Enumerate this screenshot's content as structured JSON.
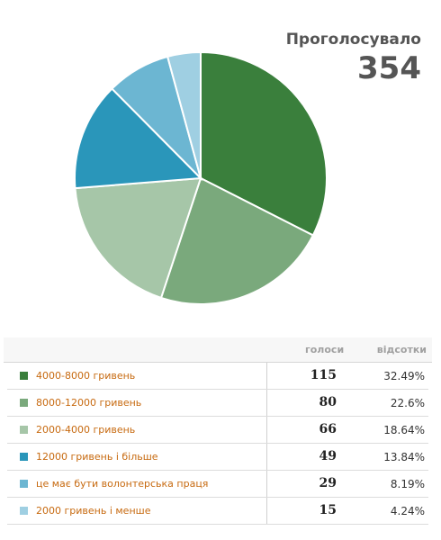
{
  "total": {
    "label": "Проголосувало",
    "value": "354"
  },
  "table": {
    "votes_header": "голоси",
    "percent_header": "відсотки"
  },
  "rows": [
    {
      "label": "4000-8000 гривень",
      "votes": "115",
      "percent": "32.49%",
      "color": "#3a7f3c"
    },
    {
      "label": "8000-12000 гривень",
      "votes": "80",
      "percent": "22.6%",
      "color": "#7aa97c"
    },
    {
      "label": "2000-4000 гривень",
      "votes": "66",
      "percent": "18.64%",
      "color": "#a6c6a8"
    },
    {
      "label": "12000 гривень і більше",
      "votes": "49",
      "percent": "13.84%",
      "color": "#2a96ba"
    },
    {
      "label": "це має бути волонтерська праця",
      "votes": "29",
      "percent": "8.19%",
      "color": "#6cb6d2"
    },
    {
      "label": "2000 гривень і менше",
      "votes": "15",
      "percent": "4.24%",
      "color": "#9fcfe2"
    }
  ],
  "chart_data": {
    "type": "pie",
    "categories": [
      "4000-8000 гривень",
      "8000-12000 гривень",
      "2000-4000 гривень",
      "12000 гривень і більше",
      "це має бути волонтерська праця",
      "2000 гривень і менше"
    ],
    "values": [
      115,
      80,
      66,
      49,
      29,
      15
    ],
    "colors": [
      "#3a7f3c",
      "#7aa97c",
      "#a6c6a8",
      "#2a96ba",
      "#6cb6d2",
      "#9fcfe2"
    ]
  }
}
